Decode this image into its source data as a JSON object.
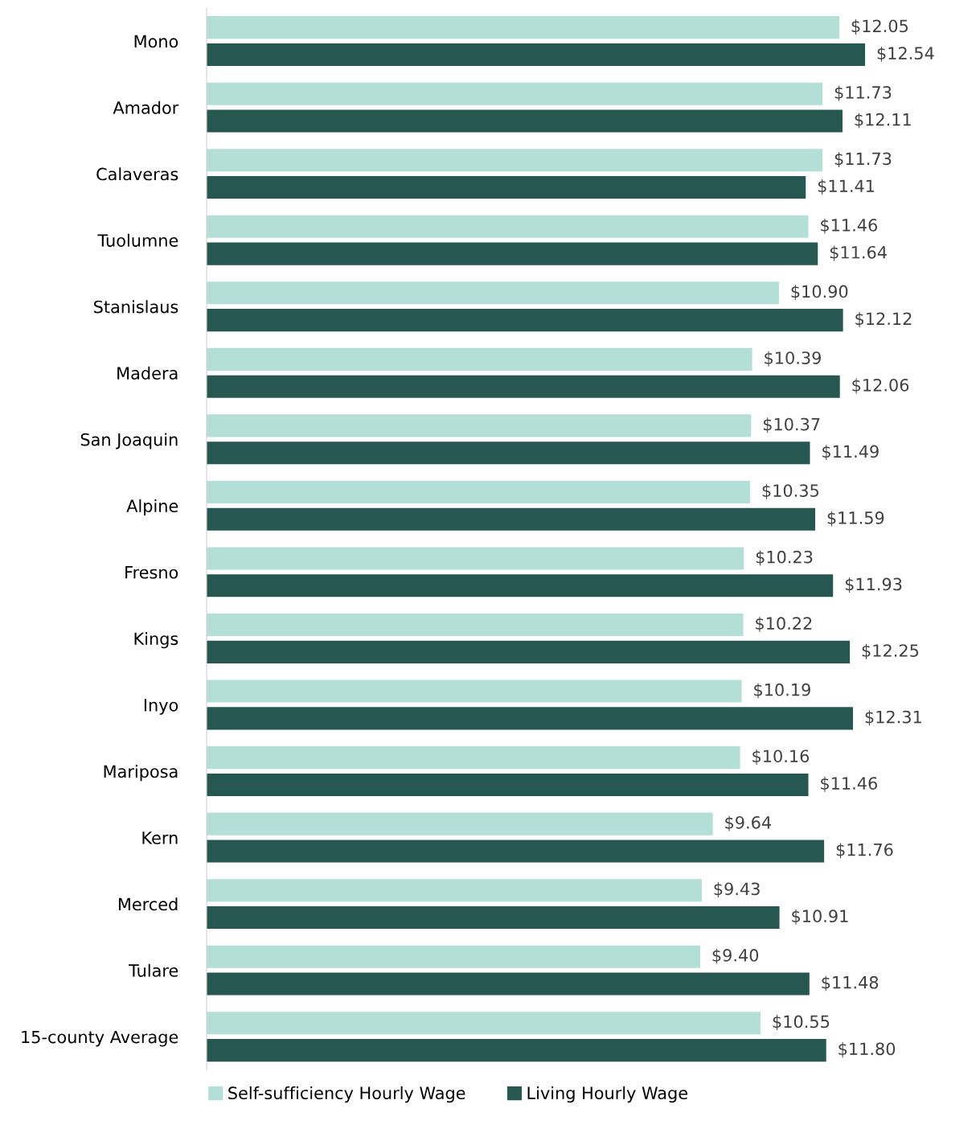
{
  "chart_data": {
    "type": "bar",
    "orientation": "horizontal",
    "categories": [
      "Mono",
      "Amador",
      "Calaveras",
      "Tuolumne",
      "Stanislaus",
      "Madera",
      "San Joaquin",
      "Alpine",
      "Fresno",
      "Kings",
      "Inyo",
      "Mariposa",
      "Kern",
      "Merced",
      "Tulare",
      "15-county Average"
    ],
    "series": [
      {
        "name": "Self-sufficiency Hourly Wage",
        "color": "#b3dfd6",
        "values": [
          12.05,
          11.73,
          11.73,
          11.46,
          10.9,
          10.39,
          10.37,
          10.35,
          10.23,
          10.22,
          10.19,
          10.16,
          9.64,
          9.43,
          9.4,
          10.55
        ],
        "value_labels": [
          "$12.05",
          "$11.73",
          "$11.73",
          "$11.46",
          "$10.90",
          "$10.39",
          "$10.37",
          "$10.35",
          "$10.23",
          "$10.22",
          "$10.19",
          "$10.16",
          "$9.64",
          "$9.43",
          "$9.40",
          "$10.55"
        ]
      },
      {
        "name": "Living Hourly Wage",
        "color": "#265750",
        "values": [
          12.54,
          12.11,
          11.41,
          11.64,
          12.12,
          12.06,
          11.49,
          11.59,
          11.93,
          12.25,
          12.31,
          11.46,
          11.76,
          10.91,
          11.48,
          11.8
        ],
        "value_labels": [
          "$12.54",
          "$12.11",
          "$11.41",
          "$11.64",
          "$12.12",
          "$12.06",
          "$11.49",
          "$11.59",
          "$11.93",
          "$12.25",
          "$12.31",
          "$11.46",
          "$11.76",
          "$10.91",
          "$11.48",
          "$11.80"
        ]
      }
    ],
    "tick_labels": "y",
    "grid": false,
    "legend": "bottom"
  }
}
